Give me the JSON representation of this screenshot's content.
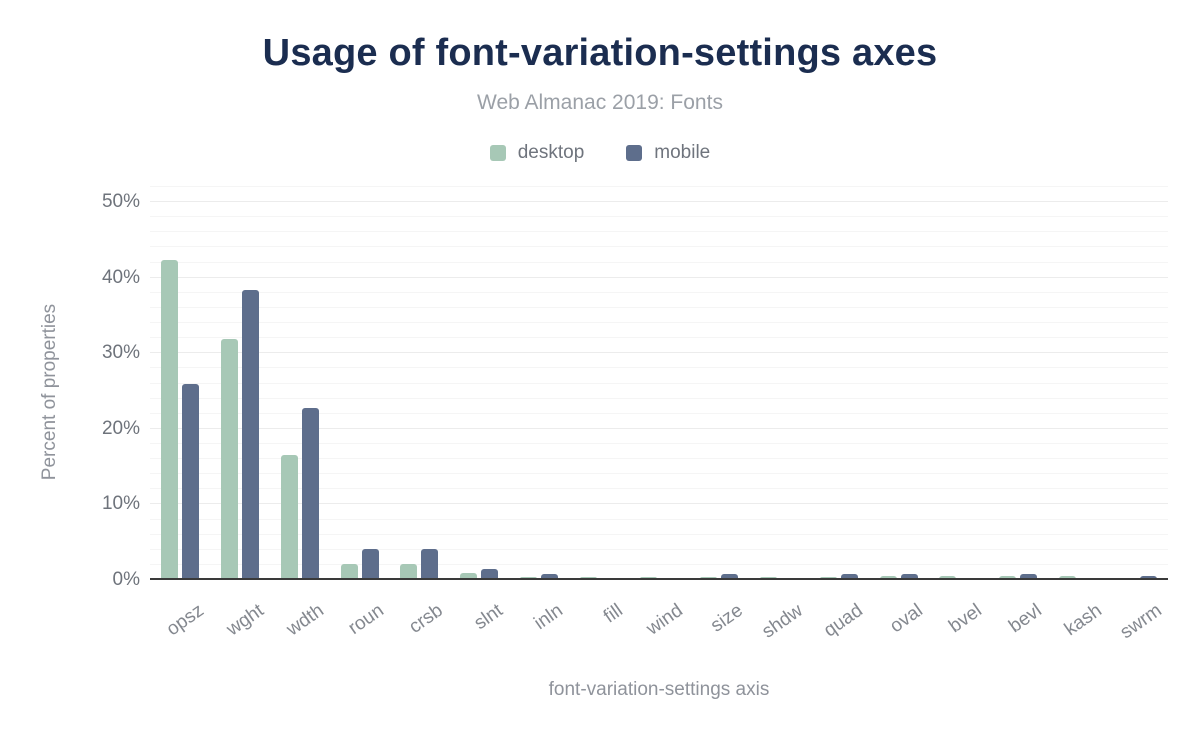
{
  "header": {
    "title": "Usage of font-variation-settings axes",
    "subtitle": "Web Almanac 2019: Fonts"
  },
  "chart_data": {
    "type": "bar",
    "title": "Usage of font-variation-settings axes",
    "subtitle": "Web Almanac 2019: Fonts",
    "categories": [
      "opsz",
      "wght",
      "wdth",
      "roun",
      "crsb",
      "slnt",
      "inln",
      "fill",
      "wind",
      "size",
      "shdw",
      "quad",
      "oval",
      "bvel",
      "bevl",
      "kash",
      "swrm"
    ],
    "series": [
      {
        "name": "desktop",
        "color": "#a7c8b6",
        "values": [
          42.2,
          31.8,
          16.4,
          2.0,
          2.0,
          0.8,
          0.3,
          0.3,
          0.3,
          0.3,
          0.3,
          0.3,
          0.4,
          0.4,
          0.4,
          0.4,
          0.1
        ]
      },
      {
        "name": "mobile",
        "color": "#5e6e8c",
        "values": [
          25.8,
          38.2,
          22.6,
          4.0,
          4.0,
          1.3,
          0.6,
          0.1,
          0.1,
          0.6,
          0.1,
          0.6,
          0.7,
          0.1,
          0.7,
          0.1,
          0.4
        ]
      }
    ],
    "xlabel": "font-variation-settings axis",
    "ylabel": "Percent of properties",
    "ylim": [
      0,
      52
    ],
    "yticks": [
      0,
      10,
      20,
      30,
      40,
      50
    ],
    "ytick_suffix": "%",
    "grid": {
      "show": true,
      "minor_step": 2,
      "major_step": 10
    },
    "legend_position": "top"
  },
  "colors": {
    "title": "#1b2d50",
    "subtitle": "#9ba0a7",
    "axis_text": "#6e737b",
    "axis_title": "#8f939b",
    "baseline": "#3a3a3a",
    "grid_minor": "#f5f5f5",
    "grid_major": "#ececec",
    "desktop": "#a7c8b6",
    "mobile": "#5e6e8c"
  }
}
